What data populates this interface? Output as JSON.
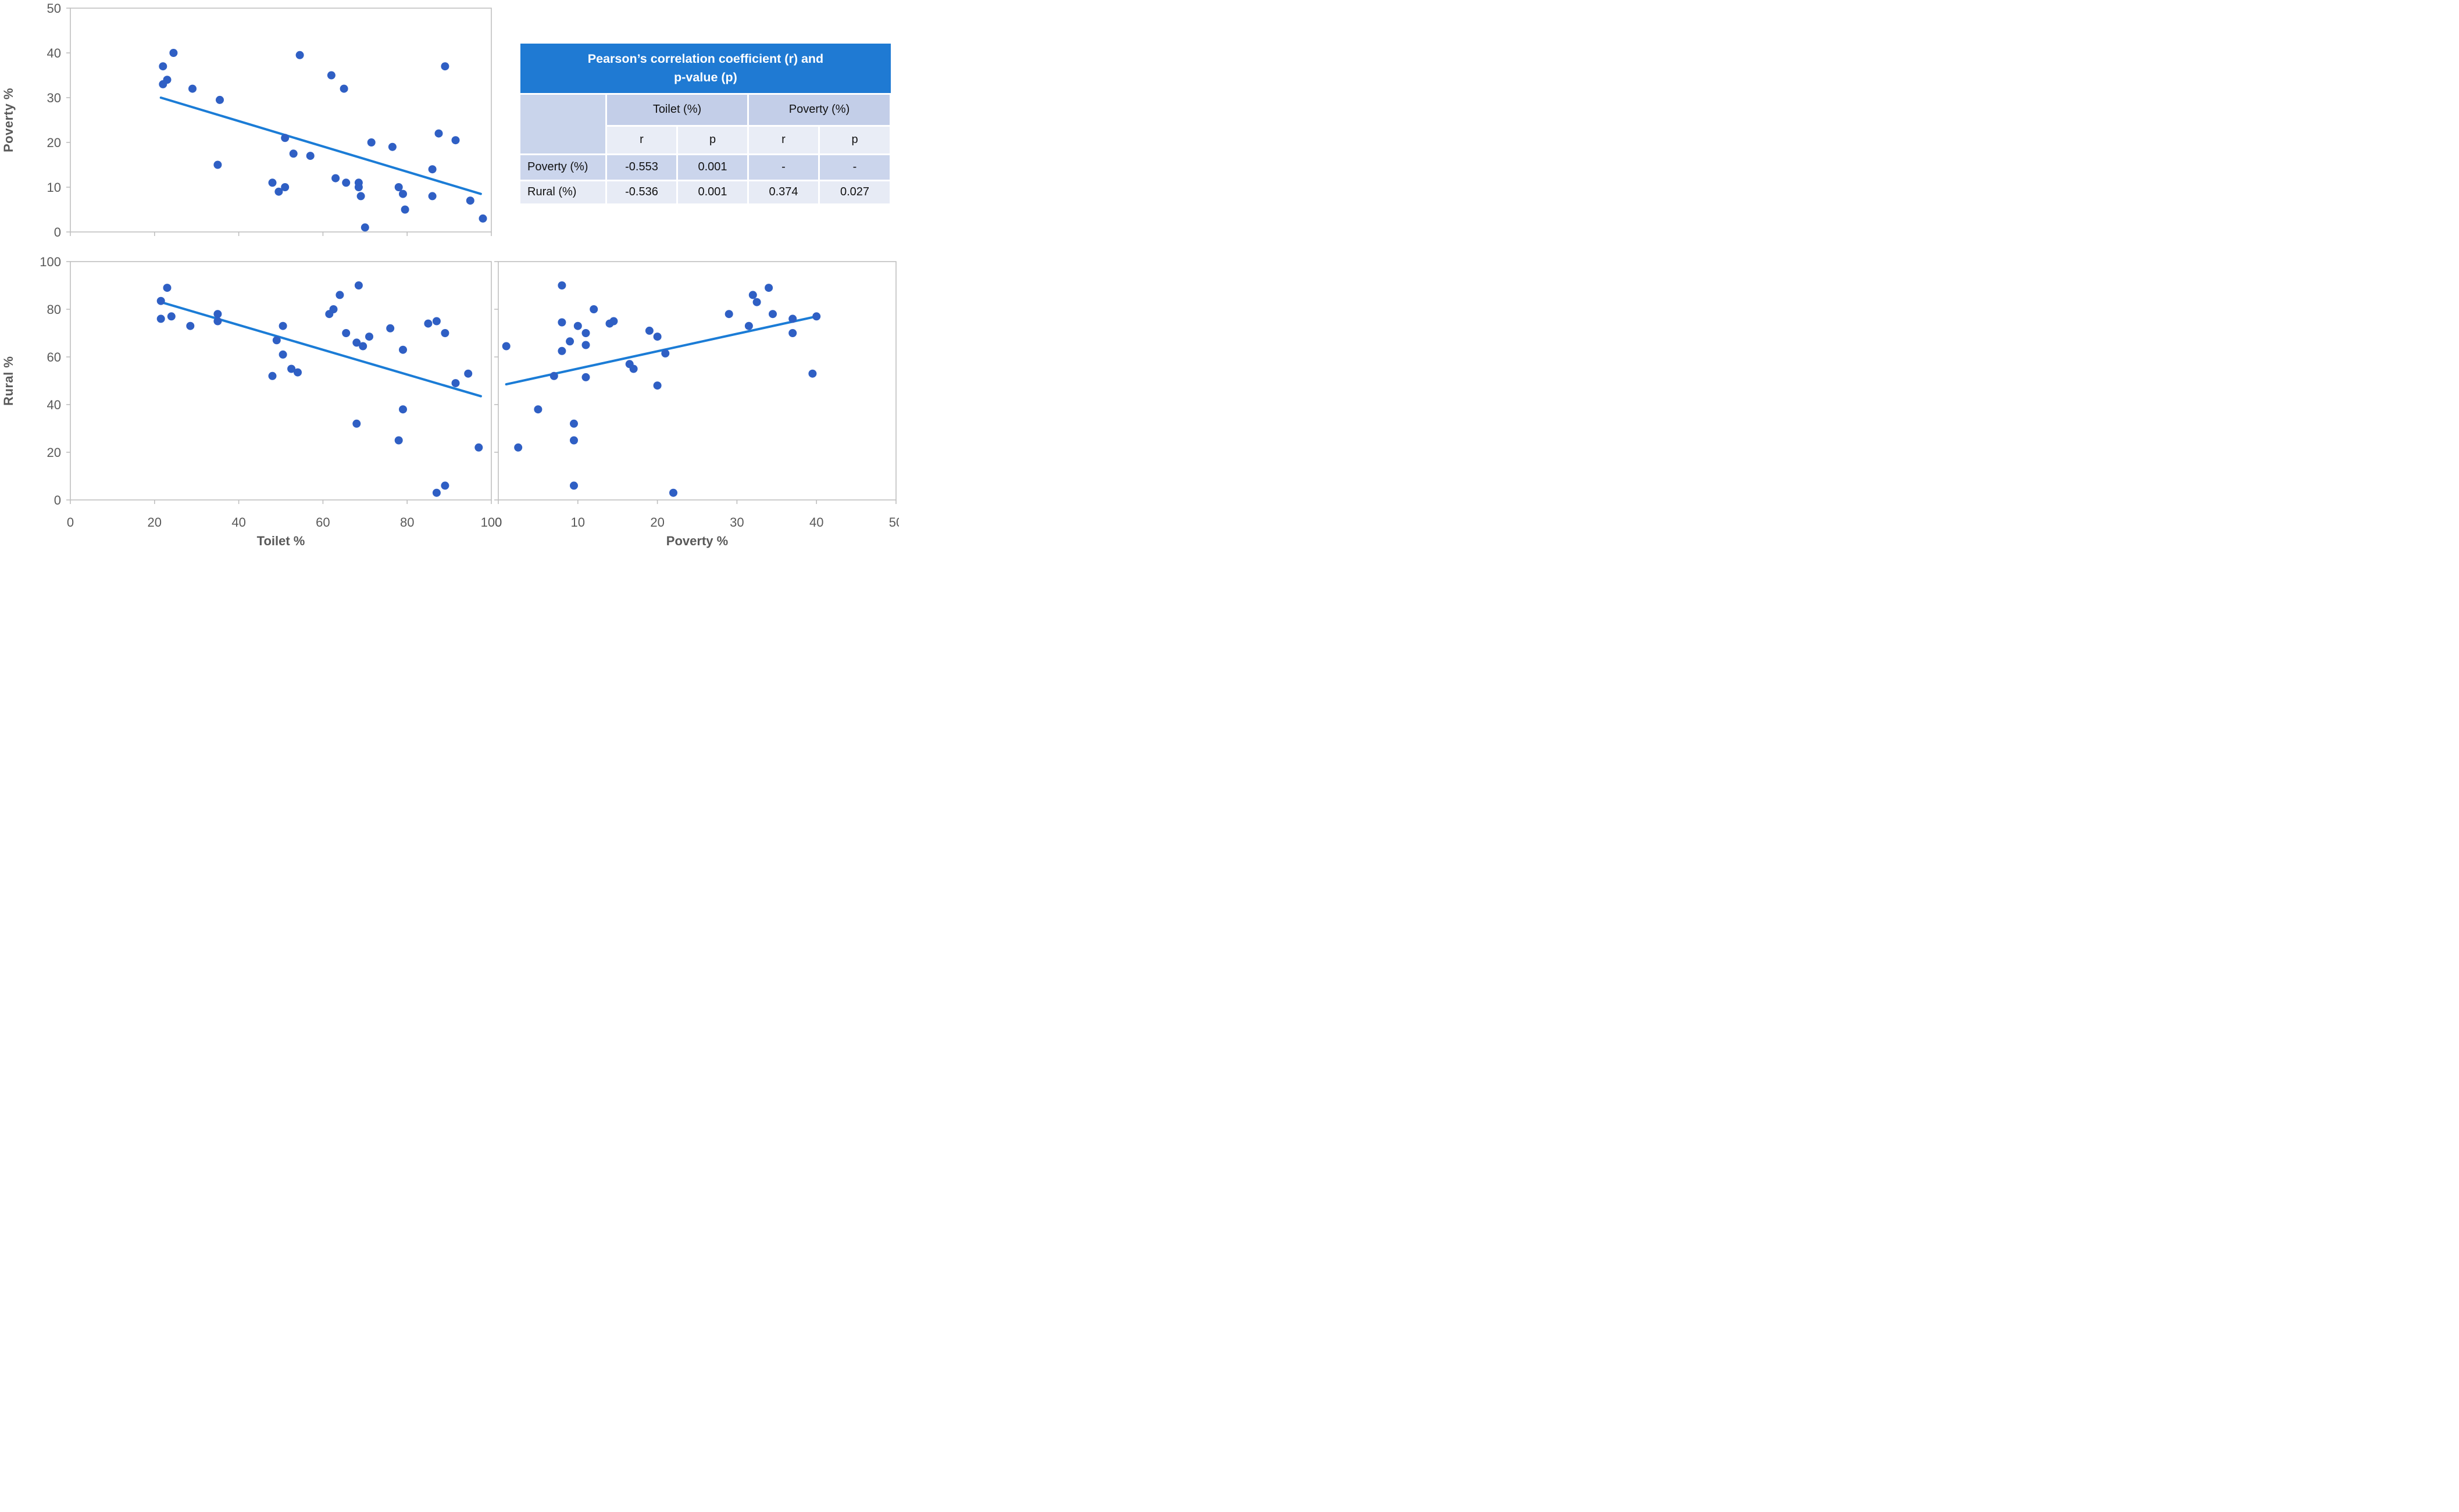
{
  "figure": {
    "background": "#FFFFFF",
    "point_color": "#2F5FC4",
    "trendline_color": "#1B7CD6",
    "axis_color": "#BFBFBF",
    "tick_text_color": "#595959"
  },
  "chart_data": [
    {
      "type": "scatter",
      "name": "poverty-vs-toilet",
      "xlabel": "",
      "ylabel": "Poverty %",
      "xlim": [
        0,
        100
      ],
      "ylim": [
        0,
        50
      ],
      "x_ticks": [
        0,
        20,
        40,
        60,
        80,
        100
      ],
      "y_ticks": [
        0,
        10,
        20,
        30,
        40,
        50
      ],
      "x_tick_labels": false,
      "y_tick_labels": true,
      "grid": false,
      "trend": {
        "x1": 21.5,
        "y1": 30,
        "x2": 97.5,
        "y2": 8.5
      },
      "points": [
        [
          24.5,
          40
        ],
        [
          22,
          37
        ],
        [
          23,
          34
        ],
        [
          22,
          33
        ],
        [
          29,
          32
        ],
        [
          35.5,
          29.5
        ],
        [
          51,
          21
        ],
        [
          53,
          17.5
        ],
        [
          35,
          15
        ],
        [
          48,
          11
        ],
        [
          51,
          10
        ],
        [
          49.5,
          9
        ],
        [
          54.5,
          39.5
        ],
        [
          89,
          37
        ],
        [
          62,
          35
        ],
        [
          65,
          32
        ],
        [
          71.5,
          20
        ],
        [
          76.5,
          19
        ],
        [
          87.5,
          22
        ],
        [
          91.5,
          20.5
        ],
        [
          57,
          17
        ],
        [
          86,
          14
        ],
        [
          63,
          12
        ],
        [
          65.5,
          11
        ],
        [
          68.5,
          11
        ],
        [
          68.5,
          10
        ],
        [
          69,
          8
        ],
        [
          78,
          10
        ],
        [
          79,
          8.5
        ],
        [
          86,
          8
        ],
        [
          79.5,
          5
        ],
        [
          95,
          7
        ],
        [
          98,
          3
        ],
        [
          70,
          1
        ]
      ]
    },
    {
      "type": "scatter",
      "name": "rural-vs-toilet",
      "xlabel": "Toilet %",
      "ylabel": "Rural %",
      "xlim": [
        0,
        100
      ],
      "ylim": [
        0,
        100
      ],
      "x_ticks": [
        0,
        20,
        40,
        60,
        80,
        100
      ],
      "y_ticks": [
        0,
        20,
        40,
        60,
        80,
        100
      ],
      "x_tick_labels": true,
      "y_tick_labels": true,
      "grid": false,
      "trend": {
        "x1": 21.5,
        "y1": 83,
        "x2": 97.5,
        "y2": 43.5
      },
      "points": [
        [
          23,
          89
        ],
        [
          21.5,
          83.5
        ],
        [
          21.5,
          76
        ],
        [
          24,
          77
        ],
        [
          28.5,
          73
        ],
        [
          35,
          78
        ],
        [
          35,
          75
        ],
        [
          50.5,
          73
        ],
        [
          49,
          67
        ],
        [
          50.5,
          61
        ],
        [
          52.5,
          55
        ],
        [
          54,
          53.5
        ],
        [
          48,
          52
        ],
        [
          68.5,
          90
        ],
        [
          64,
          86
        ],
        [
          62.5,
          80
        ],
        [
          61.5,
          78
        ],
        [
          65.5,
          70
        ],
        [
          71,
          68.5
        ],
        [
          68,
          66
        ],
        [
          69.5,
          64.5
        ],
        [
          76,
          72
        ],
        [
          79,
          63
        ],
        [
          85,
          74
        ],
        [
          87,
          75
        ],
        [
          89,
          70
        ],
        [
          94.5,
          53
        ],
        [
          91.5,
          49
        ],
        [
          79,
          38
        ],
        [
          68,
          32
        ],
        [
          78,
          25
        ],
        [
          97,
          22
        ],
        [
          89,
          6
        ],
        [
          87,
          3
        ]
      ]
    },
    {
      "type": "scatter",
      "name": "rural-vs-poverty",
      "xlabel": "Poverty %",
      "ylabel": "",
      "xlim": [
        0,
        50
      ],
      "ylim": [
        0,
        100
      ],
      "x_ticks": [
        0,
        10,
        20,
        30,
        40,
        50
      ],
      "y_ticks": [
        0,
        20,
        40,
        60,
        80,
        100
      ],
      "x_tick_labels": true,
      "y_tick_labels": false,
      "grid": false,
      "trend": {
        "x1": 1,
        "y1": 48.5,
        "x2": 40,
        "y2": 77
      },
      "points": [
        [
          8,
          90
        ],
        [
          12,
          80
        ],
        [
          8,
          74.5
        ],
        [
          10,
          73
        ],
        [
          11,
          70
        ],
        [
          9,
          66.5
        ],
        [
          11,
          65
        ],
        [
          1,
          64.5
        ],
        [
          8,
          62.5
        ],
        [
          14,
          74
        ],
        [
          14.5,
          75
        ],
        [
          19,
          71
        ],
        [
          20,
          68.5
        ],
        [
          21,
          61.5
        ],
        [
          16.5,
          57
        ],
        [
          17,
          55
        ],
        [
          7,
          52
        ],
        [
          11,
          51.5
        ],
        [
          20,
          48
        ],
        [
          5,
          38
        ],
        [
          9.5,
          32
        ],
        [
          9.5,
          25
        ],
        [
          2.5,
          22
        ],
        [
          9.5,
          6
        ],
        [
          22,
          3
        ],
        [
          34,
          89
        ],
        [
          32,
          86
        ],
        [
          32.5,
          83
        ],
        [
          29,
          78
        ],
        [
          31.5,
          73
        ],
        [
          34.5,
          78
        ],
        [
          37,
          76
        ],
        [
          40,
          77
        ],
        [
          37,
          70
        ],
        [
          39.5,
          53
        ]
      ]
    }
  ],
  "table": {
    "title_line1": "Pearson’s correlation coefficient (r) and",
    "title_line2": "p-value (p)",
    "col_groups": [
      "Toilet (%)",
      "Poverty (%)"
    ],
    "sub_headers": [
      "r",
      "p",
      "r",
      "p"
    ],
    "rows": [
      {
        "label": "Poverty (%)",
        "values": [
          "-0.553",
          "0.001",
          "-",
          "-"
        ]
      },
      {
        "label": "Rural (%)",
        "values": [
          "-0.536",
          "0.001",
          "0.374",
          "0.027"
        ]
      }
    ]
  }
}
